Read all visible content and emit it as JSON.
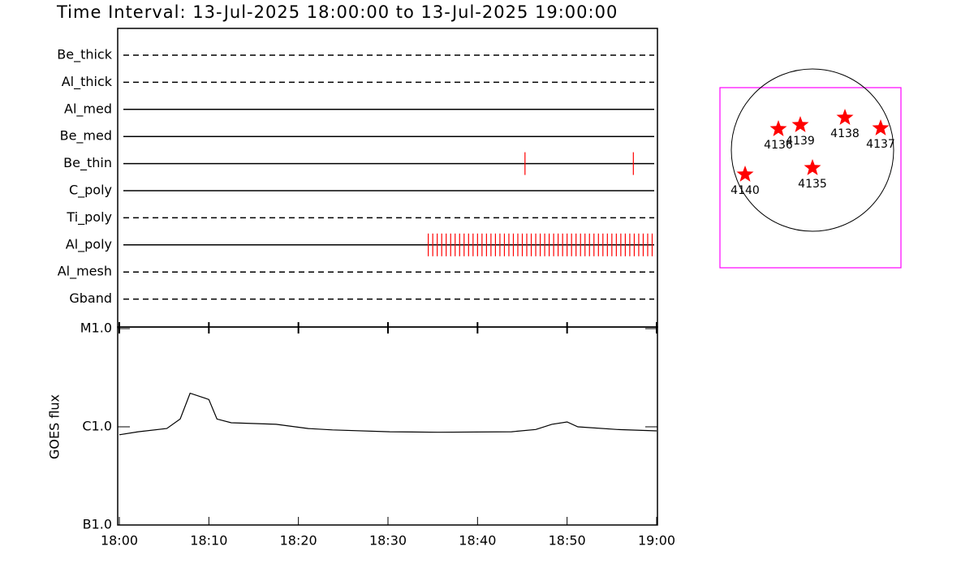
{
  "chart_data": [
    {
      "type": "timeline",
      "title": "Time Interval: 13-Jul-2025 18:00:00 to 13-Jul-2025 19:00:00",
      "categories": [
        "Be_thick",
        "Al_thick",
        "Al_med",
        "Be_med",
        "Be_thin",
        "C_poly",
        "Ti_poly",
        "Al_poly",
        "Al_mesh",
        "Gband"
      ],
      "line_styles": [
        "dashed",
        "dashed",
        "solid",
        "solid",
        "solid",
        "solid",
        "dashed",
        "solid",
        "dashed",
        "dashed"
      ],
      "events": [
        [],
        [],
        [],
        [],
        [
          45.3,
          57.4
        ],
        [],
        [],
        [
          34.5,
          35,
          35.5,
          36,
          36.5,
          37,
          37.5,
          38,
          38.5,
          39,
          39.5,
          40,
          40.5,
          41,
          41.5,
          42,
          42.5,
          43,
          43.5,
          44,
          44.5,
          45,
          45.5,
          46,
          46.5,
          47,
          47.5,
          48,
          48.5,
          49,
          49.5,
          50,
          50.5,
          51,
          51.5,
          52,
          52.5,
          53,
          53.5,
          54,
          54.5,
          55,
          55.5,
          56,
          56.5,
          57,
          57.5,
          58,
          58.5,
          59,
          59.5
        ],
        [],
        []
      ],
      "event_color": "#ff0000",
      "xlim": [
        0,
        60
      ]
    },
    {
      "type": "line",
      "y_label": "GOES flux",
      "y_scale": "log",
      "x": [
        0,
        2.1,
        5.3,
        6.8,
        7.9,
        10,
        10.9,
        12.5,
        17.5,
        21.1,
        23.8,
        30.2,
        35.6,
        43.8,
        46.5,
        48.3,
        50,
        51.2,
        55.6,
        60
      ],
      "values": [
        8.3e-07,
        8.9e-07,
        9.6e-07,
        1.2e-06,
        2.2e-06,
        1.9e-06,
        1.2e-06,
        1.1e-06,
        1.06e-06,
        9.6e-07,
        9.3e-07,
        8.9e-07,
        8.8e-07,
        8.9e-07,
        9.4e-07,
        1.06e-06,
        1.12e-06,
        1e-06,
        9.4e-07,
        9.1e-07
      ],
      "color": "#000000",
      "xlim": [
        0,
        60
      ],
      "xticks": [
        {
          "value": 0,
          "label": "18:00"
        },
        {
          "value": 10,
          "label": "18:10"
        },
        {
          "value": 20,
          "label": "18:20"
        },
        {
          "value": 30,
          "label": "18:30"
        },
        {
          "value": 40,
          "label": "18:40"
        },
        {
          "value": 50,
          "label": "18:50"
        },
        {
          "value": 60,
          "label": "19:00"
        }
      ],
      "ylim": [
        1e-07,
        1e-05
      ],
      "yticks": [
        {
          "value": 1e-07,
          "label": "B1.0"
        },
        {
          "value": 1e-06,
          "label": "C1.0"
        },
        {
          "value": 1e-05,
          "label": "M1.0"
        }
      ]
    },
    {
      "type": "scatter",
      "labels": [
        "4136",
        "4139",
        "4138",
        "4137",
        "4140",
        "4135"
      ],
      "x": [
        -0.42,
        -0.15,
        0.4,
        0.84,
        -0.83,
        0.0
      ],
      "y": [
        0.26,
        0.31,
        0.4,
        0.27,
        -0.3,
        -0.22
      ],
      "color": "#ff0000",
      "frame_color": "#ff00ff",
      "disk_radius": 1,
      "xlim": [
        -1.14,
        1.09
      ],
      "ylim": [
        -1.45,
        0.77
      ]
    }
  ]
}
